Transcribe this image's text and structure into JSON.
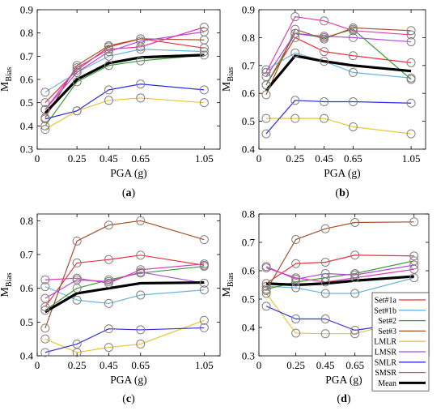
{
  "chart_data": [
    {
      "type": "line",
      "panel_label": "(a)",
      "xlabel": "PGA (g)",
      "ylabel_main": "M",
      "ylabel_sub": "Bias",
      "x": [
        0.05,
        0.25,
        0.45,
        0.65,
        1.05
      ],
      "xticks": [
        0,
        0.25,
        0.45,
        0.65,
        1.05
      ],
      "xtick_labels": [
        "0",
        "0.25",
        "0.45",
        "0.65",
        "1.05"
      ],
      "xlim": [
        0,
        1.15
      ],
      "ylim": [
        0.3,
        0.9
      ],
      "yticks": [
        0.3,
        0.4,
        0.5,
        0.6,
        0.7,
        0.8,
        0.9
      ],
      "ytick_labels": [
        "0.3",
        "0.4",
        "0.5",
        "0.6",
        "0.7",
        "0.8",
        "0.9"
      ],
      "series": [
        {
          "name": "Set#1a",
          "values": [
            0.5,
            0.64,
            0.74,
            0.775,
            0.735
          ]
        },
        {
          "name": "Set#1b",
          "values": [
            0.545,
            0.63,
            0.7,
            0.73,
            0.72
          ]
        },
        {
          "name": "Set#2",
          "values": [
            0.4,
            0.59,
            0.66,
            0.68,
            0.705
          ]
        },
        {
          "name": "Set#3",
          "values": [
            0.435,
            0.66,
            0.745,
            0.775,
            0.77
          ]
        },
        {
          "name": "LMLR",
          "values": [
            0.385,
            0.465,
            0.51,
            0.52,
            0.5
          ]
        },
        {
          "name": "LMSR",
          "values": [
            0.47,
            0.63,
            0.72,
            0.765,
            0.805
          ]
        },
        {
          "name": "SMLR",
          "values": [
            0.43,
            0.465,
            0.555,
            0.58,
            0.555
          ]
        },
        {
          "name": "SMSR",
          "values": [
            0.47,
            0.65,
            0.73,
            0.74,
            0.825
          ]
        },
        {
          "name": "Mean",
          "values": [
            0.455,
            0.6,
            0.67,
            0.695,
            0.705
          ]
        }
      ]
    },
    {
      "type": "line",
      "panel_label": "(b)",
      "xlabel": "PGA (g)",
      "ylabel_main": "M",
      "ylabel_sub": "Bias",
      "x": [
        0.05,
        0.25,
        0.45,
        0.65,
        1.05
      ],
      "xticks": [
        0,
        0.25,
        0.45,
        0.65,
        1.05
      ],
      "xtick_labels": [
        "0",
        "0.25",
        "0.45",
        "0.65",
        "1.05"
      ],
      "xlim": [
        0,
        1.15
      ],
      "ylim": [
        0.4,
        0.9
      ],
      "yticks": [
        0.4,
        0.5,
        0.6,
        0.7,
        0.8,
        0.9
      ],
      "ytick_labels": [
        "0.4",
        "0.5",
        "0.6",
        "0.7",
        "0.8",
        "0.9"
      ],
      "series": [
        {
          "name": "Set#1a",
          "values": [
            0.63,
            0.8,
            0.75,
            0.735,
            0.71
          ]
        },
        {
          "name": "Set#1b",
          "values": [
            0.685,
            0.745,
            0.715,
            0.675,
            0.655
          ]
        },
        {
          "name": "Set#2",
          "values": [
            0.63,
            0.815,
            0.8,
            0.83,
            0.65
          ]
        },
        {
          "name": "Set#3",
          "values": [
            0.595,
            0.83,
            0.795,
            0.835,
            0.825
          ]
        },
        {
          "name": "LMLR",
          "values": [
            0.51,
            0.51,
            0.51,
            0.48,
            0.455
          ]
        },
        {
          "name": "LMSR",
          "values": [
            0.66,
            0.815,
            0.805,
            0.8,
            0.785
          ]
        },
        {
          "name": "SMLR",
          "values": [
            0.455,
            0.575,
            0.57,
            0.57,
            0.565
          ]
        },
        {
          "name": "SMSR",
          "values": [
            0.675,
            0.875,
            0.86,
            0.825,
            0.81
          ]
        },
        {
          "name": "Mean",
          "values": [
            0.61,
            0.735,
            0.715,
            0.7,
            0.68
          ]
        }
      ]
    },
    {
      "type": "line",
      "panel_label": "(c)",
      "xlabel": "PGA (g)",
      "ylabel_main": "M",
      "ylabel_sub": "Bias",
      "x": [
        0.05,
        0.25,
        0.45,
        0.65,
        1.05
      ],
      "xticks": [
        0,
        0.25,
        0.45,
        0.65,
        1.05
      ],
      "xtick_labels": [
        "0",
        "0.25",
        "0.45",
        "0.65",
        "1.05"
      ],
      "xlim": [
        0,
        1.15
      ],
      "ylim": [
        0.4,
        0.82
      ],
      "yticks": [
        0.4,
        0.5,
        0.6,
        0.7,
        0.8
      ],
      "ytick_labels": [
        "0.4",
        "0.5",
        "0.6",
        "0.7",
        "0.8"
      ],
      "series": [
        {
          "name": "Set#1a",
          "values": [
            0.545,
            0.675,
            0.685,
            0.698,
            0.668
          ]
        },
        {
          "name": "Set#1b",
          "values": [
            0.605,
            0.565,
            0.555,
            0.58,
            0.595
          ]
        },
        {
          "name": "Set#2",
          "values": [
            0.535,
            0.6,
            0.625,
            0.645,
            0.665
          ]
        },
        {
          "name": "Set#3",
          "values": [
            0.482,
            0.74,
            0.787,
            0.8,
            0.744
          ]
        },
        {
          "name": "LMLR",
          "values": [
            0.45,
            0.41,
            0.425,
            0.435,
            0.505
          ]
        },
        {
          "name": "LMSR",
          "values": [
            0.57,
            0.625,
            0.62,
            0.648,
            0.615
          ]
        },
        {
          "name": "SMLR",
          "values": [
            0.41,
            0.435,
            0.48,
            0.477,
            0.483
          ]
        },
        {
          "name": "SMSR",
          "values": [
            0.625,
            0.63,
            0.615,
            0.655,
            0.672
          ]
        },
        {
          "name": "Mean",
          "values": [
            0.53,
            0.585,
            0.6,
            0.615,
            0.617
          ]
        }
      ]
    },
    {
      "type": "line",
      "panel_label": "(d)",
      "xlabel": "PGA (g)",
      "ylabel_main": "M",
      "ylabel_sub": "Bias",
      "x": [
        0.05,
        0.25,
        0.45,
        0.65,
        1.05
      ],
      "xticks": [
        0,
        0.25,
        0.45,
        0.65,
        1.05
      ],
      "xtick_labels": [
        "0",
        "0.25",
        "0.45",
        "0.65",
        "1.05"
      ],
      "xlim": [
        0,
        1.15
      ],
      "ylim": [
        0.3,
        0.8
      ],
      "yticks": [
        0.3,
        0.4,
        0.5,
        0.6,
        0.7,
        0.8
      ],
      "ytick_labels": [
        "0.3",
        "0.4",
        "0.5",
        "0.6",
        "0.7",
        "0.8"
      ],
      "series": [
        {
          "name": "Set#1a",
          "values": [
            0.555,
            0.625,
            0.63,
            0.655,
            0.652
          ]
        },
        {
          "name": "Set#1b",
          "values": [
            0.545,
            0.54,
            0.52,
            0.52,
            0.575
          ]
        },
        {
          "name": "Set#2",
          "values": [
            0.535,
            0.56,
            0.575,
            0.59,
            0.635
          ]
        },
        {
          "name": "Set#3",
          "values": [
            0.53,
            0.71,
            0.748,
            0.77,
            0.772
          ]
        },
        {
          "name": "LMLR",
          "values": [
            0.52,
            0.38,
            0.378,
            0.378,
            0.43
          ]
        },
        {
          "name": "LMSR",
          "values": [
            0.615,
            0.57,
            0.59,
            0.585,
            0.62
          ]
        },
        {
          "name": "SMLR",
          "values": [
            0.475,
            0.43,
            0.43,
            0.39,
            0.42
          ]
        },
        {
          "name": "SMSR",
          "values": [
            0.61,
            0.575,
            0.56,
            0.575,
            0.605
          ]
        },
        {
          "name": "Mean",
          "values": [
            0.555,
            0.55,
            0.555,
            0.565,
            0.58
          ]
        }
      ]
    }
  ],
  "legend": {
    "placement": "lower-right of panel (d)",
    "entries": [
      "Set#1a",
      "Set#1b",
      "Set#2",
      "Set#3",
      "LMLR",
      "LMSR",
      "SMLR",
      "SMSR",
      "Mean"
    ]
  },
  "colors": {
    "Set#1a": "#e8313c",
    "Set#1b": "#6bb5dd",
    "Set#2": "#3a9c3a",
    "Set#3": "#a5512a",
    "LMLR": "#e8c636",
    "LMSR": "#b04ae0",
    "SMLR": "#2c2ee0",
    "SMSR": "#e03ab4",
    "Mean": "#000000",
    "marker": "#8a7f7f"
  }
}
